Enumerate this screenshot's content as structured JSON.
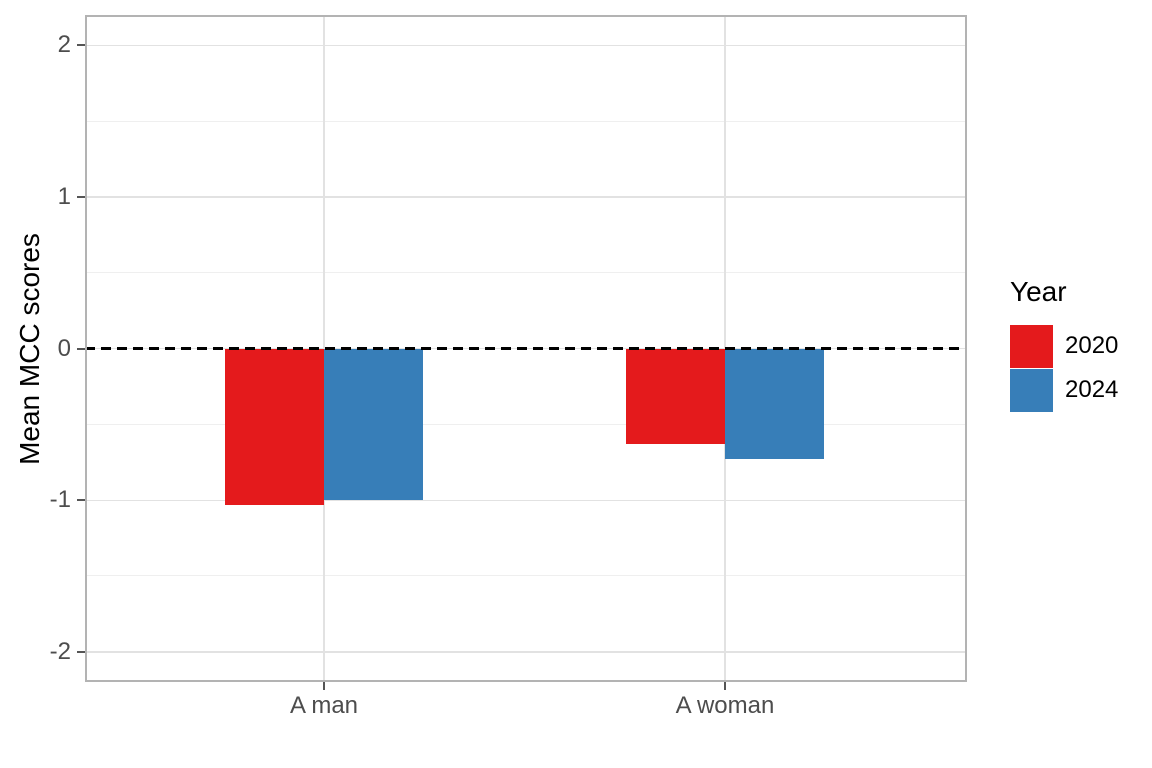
{
  "chart_data": {
    "type": "bar",
    "title": "",
    "xlabel": "",
    "ylabel": "Mean MCC scores",
    "categories": [
      "A man",
      "A woman"
    ],
    "series": [
      {
        "name": "2020",
        "color": "#e41a1c",
        "values": [
          -1.03,
          -0.63
        ]
      },
      {
        "name": "2024",
        "color": "#377eb8",
        "values": [
          -1.0,
          -0.73
        ]
      }
    ],
    "ylim": [
      -2.2,
      2.2
    ],
    "yticks": [
      2,
      1,
      0,
      -1,
      -2
    ],
    "ytick_labels": [
      "2",
      "1",
      "0",
      "-1",
      "-2"
    ],
    "grid": "horizontal major+minor, vertical major at category centers",
    "legend": {
      "title": "Year",
      "position": "right",
      "entries": [
        {
          "label": "2020",
          "color": "#e41a1c"
        },
        {
          "label": "2024",
          "color": "#377eb8"
        }
      ]
    },
    "reference_line": {
      "y": 0,
      "style": "dashed",
      "color": "#000000"
    }
  },
  "styles": {
    "background": "#ffffff",
    "tick_label_color": "#4d4d4d",
    "axis_title_color": "#000000",
    "panel_border_color": "#b3b3b3",
    "major_grid_color": "#e2e2e2",
    "minor_grid_color": "#efefef",
    "zero_line_color": "#000000"
  }
}
